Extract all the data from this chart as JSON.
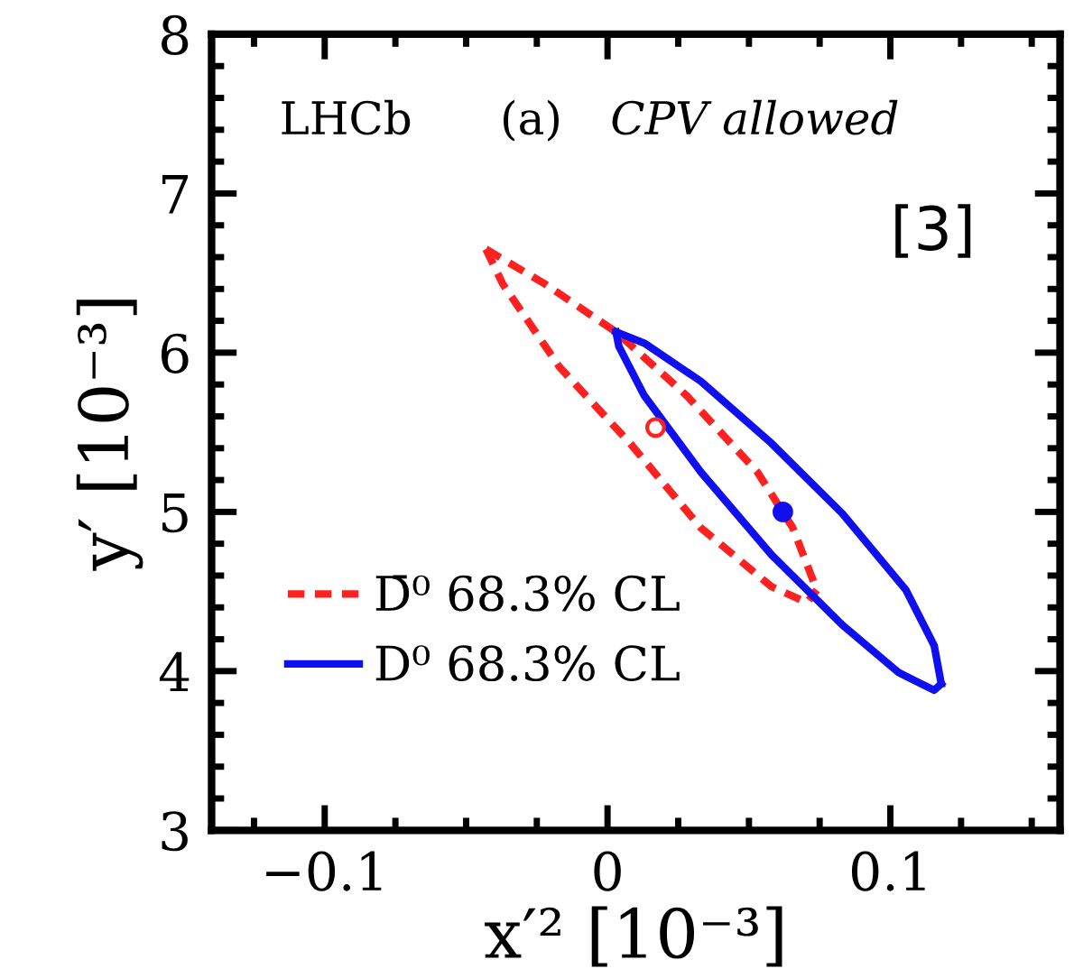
{
  "chart_data": {
    "type": "line",
    "xlabel": "x′² [10⁻³]",
    "ylabel": "y′ [10⁻³]",
    "xlim": [
      -0.14,
      0.16
    ],
    "ylim": [
      3,
      8
    ],
    "xticks": [
      {
        "value": -0.1,
        "label": "−0.1"
      },
      0,
      0.1
    ],
    "yticks": [
      3,
      4,
      5,
      6,
      7,
      8
    ],
    "grid": false,
    "legend": "bottom left",
    "annotations": [
      "LHCb",
      "(a)",
      "CPV allowed",
      "[3]"
    ],
    "series": [
      {
        "name": "D̄⁰ 68.3% CL",
        "color": "#ff2020",
        "line_style": "dashed",
        "marker": "none",
        "x": [
          -0.043,
          -0.022,
          0.003,
          0.028,
          0.053,
          0.0655,
          0.074
        ],
        "values": [
          6.65,
          6.43,
          6.13,
          5.73,
          5.25,
          4.9,
          4.51
        ]
      },
      {
        "color": "#ff2020",
        "line_style": "dashed",
        "marker": "none",
        "x": [
          -0.043,
          -0.037,
          -0.017,
          0.008,
          0.033,
          0.058,
          0.0705,
          0.074
        ],
        "values": [
          6.65,
          6.43,
          5.91,
          5.43,
          4.9,
          4.53,
          4.43,
          4.51
        ]
      },
      {
        "name": "D⁰ 68.3% CL",
        "color": "#1010ee",
        "line_style": "solid",
        "marker": "none",
        "x": [
          0.003,
          0.013,
          0.033,
          0.058,
          0.083,
          0.1055,
          0.1155,
          0.118
        ],
        "values": [
          6.13,
          6.06,
          5.82,
          5.43,
          4.99,
          4.51,
          4.16,
          3.92
        ]
      },
      {
        "color": "#1010ee",
        "line_style": "solid",
        "marker": "none",
        "x": [
          0.003,
          0.004,
          0.013,
          0.033,
          0.058,
          0.083,
          0.103,
          0.1155,
          0.118
        ],
        "values": [
          6.13,
          6.04,
          5.73,
          5.25,
          4.73,
          4.29,
          3.99,
          3.88,
          3.92
        ]
      },
      {
        "type": "scatter",
        "color": "#ff2020",
        "marker": "open circle",
        "x": [
          0.017
        ],
        "values": [
          5.53
        ]
      },
      {
        "type": "scatter",
        "color": "#1010ee",
        "marker": "circle",
        "x": [
          0.062
        ],
        "values": [
          5.0
        ]
      }
    ]
  }
}
